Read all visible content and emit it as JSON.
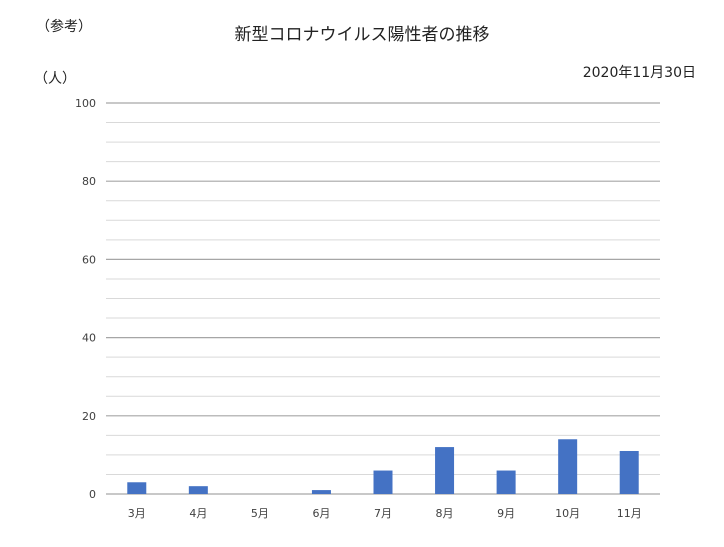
{
  "header": {
    "note": "（参考）",
    "title": "新型コロナウイルス陽性者の推移",
    "date": "2020年11月30日",
    "unit": "（人）"
  },
  "chart_data": {
    "type": "bar",
    "title": "新型コロナウイルス陽性者の推移",
    "xlabel": "",
    "ylabel": "（人）",
    "categories": [
      "3月",
      "4月",
      "5月",
      "6月",
      "7月",
      "8月",
      "9月",
      "10月",
      "11月"
    ],
    "values": [
      3,
      2,
      0,
      1,
      6,
      12,
      6,
      14,
      11
    ],
    "ylim": [
      0,
      100
    ],
    "yticks": [
      0,
      20,
      40,
      60,
      80,
      100
    ],
    "grid": true,
    "minor_grid_step": 5,
    "bar_color": "#4472C4",
    "major_grid_color": "#a6a6a6",
    "minor_grid_color": "#d9d9d9"
  }
}
